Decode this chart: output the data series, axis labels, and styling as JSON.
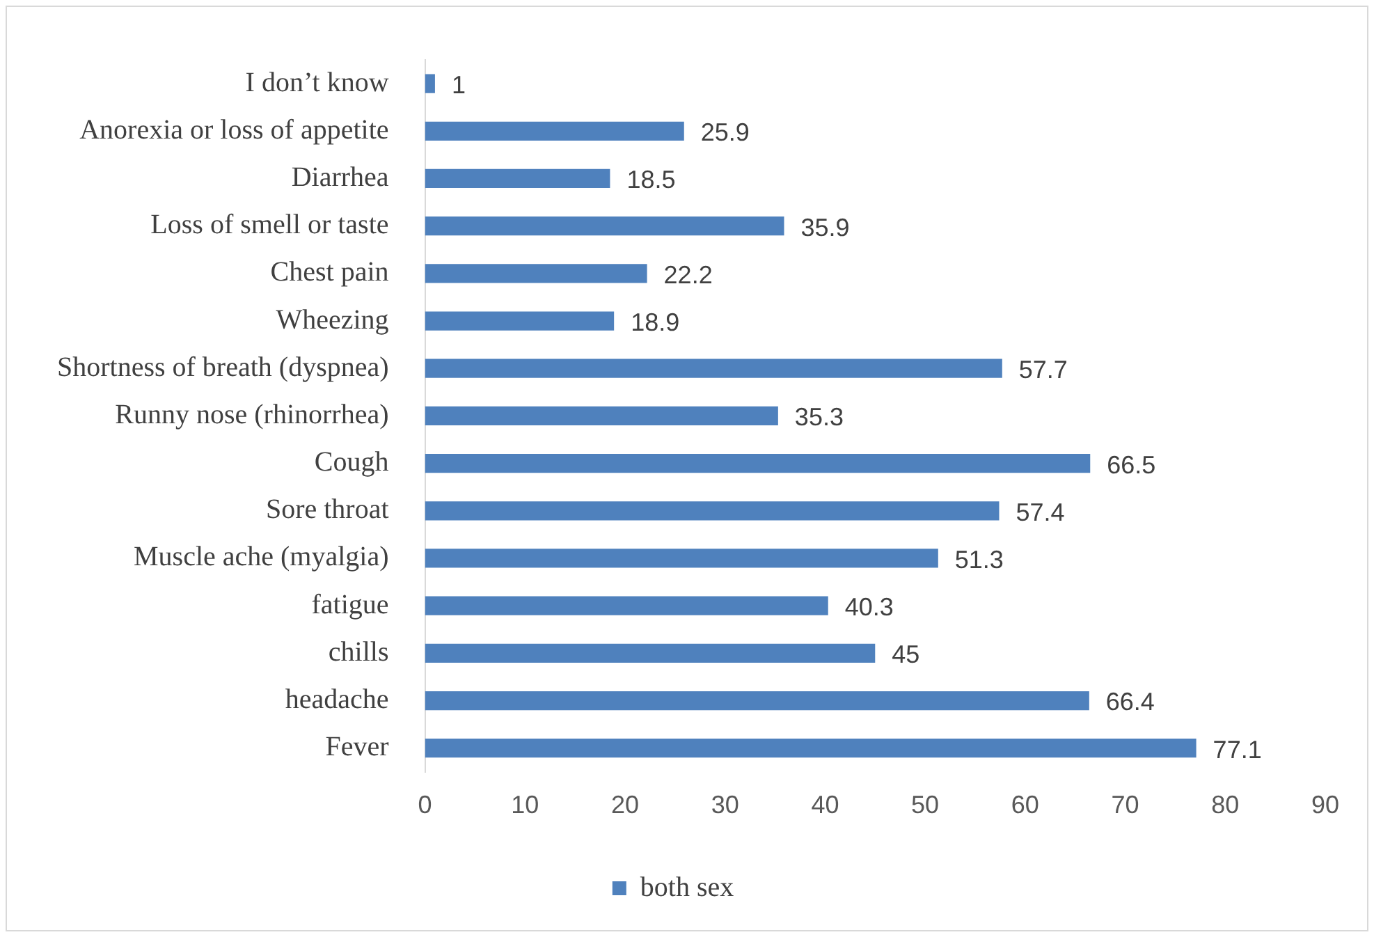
{
  "chart_data": {
    "type": "bar",
    "orientation": "horizontal",
    "categories": [
      "I don’t know",
      "Anorexia or loss of appetite",
      "Diarrhea",
      "Loss of smell or taste",
      "Chest pain",
      "Wheezing",
      "Shortness of breath (dyspnea)",
      "Runny nose (rhinorrhea)",
      "Cough",
      "Sore throat",
      "Muscle ache (myalgia)",
      "fatigue",
      "chills",
      "headache",
      "Fever"
    ],
    "series": [
      {
        "name": "both sex",
        "color": "#4f81bd",
        "values": [
          1,
          25.9,
          18.5,
          35.9,
          22.2,
          18.9,
          57.7,
          35.3,
          66.5,
          57.4,
          51.3,
          40.3,
          45,
          66.4,
          77.1
        ]
      }
    ],
    "xlim": [
      0,
      90
    ],
    "xticks": [
      0,
      10,
      20,
      30,
      40,
      50,
      60,
      70,
      80,
      90
    ],
    "grid": false,
    "legend": "bottom",
    "data_labels": true
  }
}
